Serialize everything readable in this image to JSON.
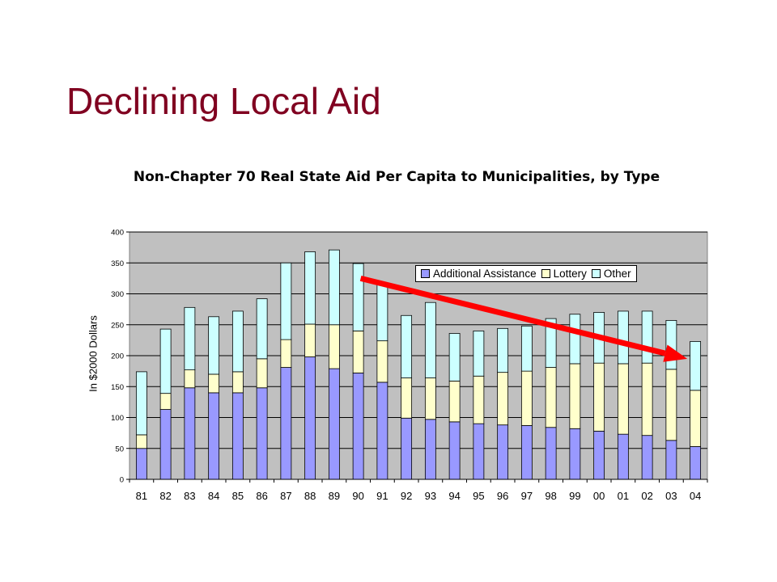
{
  "slide": {
    "title": "Declining Local Aid"
  },
  "chart_data": {
    "type": "bar",
    "stacked": true,
    "title": "Non-Chapter 70 Real State Aid Per Capita to Municipalities, by Type",
    "xlabel": "",
    "ylabel": "In $2000 Dollars",
    "ylim": [
      0,
      400
    ],
    "yticks": [
      0,
      50,
      100,
      150,
      200,
      250,
      300,
      350,
      400
    ],
    "grid": true,
    "legend_position": "top-right",
    "categories": [
      "81",
      "82",
      "83",
      "84",
      "85",
      "86",
      "87",
      "88",
      "89",
      "90",
      "91",
      "92",
      "93",
      "94",
      "95",
      "96",
      "97",
      "98",
      "99",
      "00",
      "01",
      "02",
      "03",
      "04"
    ],
    "series": [
      {
        "name": "Additional Assistance",
        "color": "#9999ff",
        "values": [
          50,
          113,
          148,
          140,
          140,
          148,
          181,
          198,
          179,
          172,
          157,
          99,
          97,
          93,
          90,
          88,
          87,
          84,
          82,
          78,
          73,
          71,
          63,
          53
        ]
      },
      {
        "name": "Lottery",
        "color": "#ffffcc",
        "values": [
          22,
          26,
          29,
          30,
          34,
          47,
          45,
          53,
          71,
          68,
          67,
          65,
          67,
          66,
          77,
          85,
          88,
          97,
          105,
          110,
          114,
          117,
          115,
          91
        ]
      },
      {
        "name": "Other",
        "color": "#ccffff",
        "values": [
          102,
          104,
          101,
          93,
          98,
          97,
          124,
          117,
          121,
          109,
          92,
          101,
          122,
          77,
          73,
          71,
          73,
          79,
          80,
          82,
          85,
          84,
          79,
          79
        ]
      }
    ],
    "annotation": {
      "type": "arrow",
      "from_category": "90",
      "from_value": 325,
      "to_category": "04",
      "to_value": 195,
      "color": "#ff0000"
    },
    "colors": {
      "plot_background": "#c0c0c0",
      "slide_title": "#800020",
      "arrow": "#ff0000"
    }
  }
}
